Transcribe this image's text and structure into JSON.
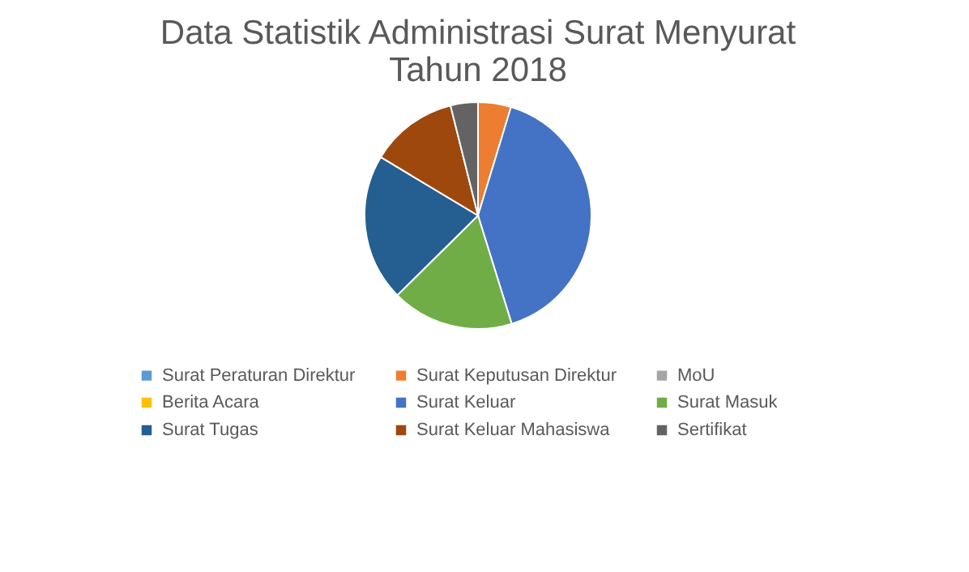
{
  "chart_data": {
    "type": "pie",
    "title": [
      "Data Statistik Administrasi Surat Menyurat",
      "Tahun 2018"
    ],
    "categories": [
      "Surat Peraturan Direktur",
      "Surat Keputusan Direktur",
      "MoU",
      "Berita Acara",
      "Surat Keluar",
      "Surat Masuk",
      "Surat Tugas",
      "Surat Keluar Mahasiswa",
      "Sertifikat"
    ],
    "values": [
      0,
      4.7,
      0,
      0,
      40.5,
      17.4,
      21,
      12.5,
      3.9
    ],
    "colors": [
      "#5b9bd5",
      "#ed7d31",
      "#a5a5a5",
      "#ffc000",
      "#4472c4",
      "#70ad47",
      "#255e91",
      "#9e480e",
      "#636363"
    ],
    "legend": "bottom"
  }
}
